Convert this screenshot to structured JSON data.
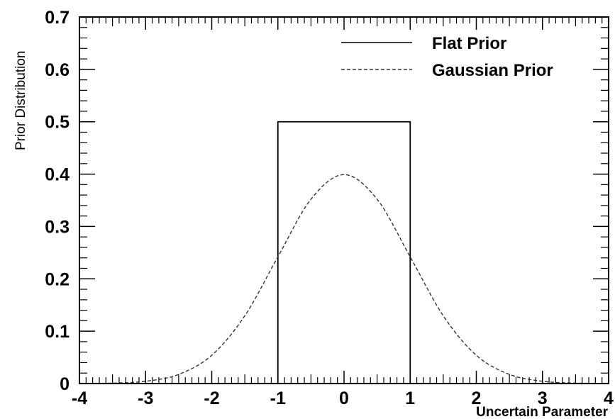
{
  "chart_data": {
    "type": "line",
    "title": "",
    "xlabel": "Uncertain Parameter",
    "ylabel": "Prior Distribution",
    "xlim": [
      -4,
      4
    ],
    "ylim": [
      0,
      0.7
    ],
    "xticks": [
      "-4",
      "-3",
      "-2",
      "-1",
      "0",
      "1",
      "2",
      "3",
      "4"
    ],
    "yticks": [
      "0",
      "0.1",
      "0.2",
      "0.3",
      "0.4",
      "0.5",
      "0.6",
      "0.7"
    ],
    "grid": false,
    "legend_position": "top-right",
    "series": [
      {
        "name": "Flat Prior",
        "style": "solid",
        "color": "#000000",
        "x": [
          -4,
          -1,
          -1,
          1,
          1,
          4
        ],
        "y": [
          0,
          0,
          0.5,
          0.5,
          0,
          0
        ]
      },
      {
        "name": "Gaussian Prior",
        "style": "dashed",
        "color": "#333333",
        "x": [
          -4,
          -3.5,
          -3,
          -2.5,
          -2,
          -1.5,
          -1,
          -0.5,
          0,
          0.5,
          1,
          1.5,
          2,
          2.5,
          3,
          3.5,
          4
        ],
        "y": [
          0.0001,
          0.0009,
          0.0044,
          0.0175,
          0.054,
          0.1295,
          0.242,
          0.352,
          0.399,
          0.352,
          0.242,
          0.1295,
          0.054,
          0.0175,
          0.0044,
          0.0009,
          0.0001
        ]
      }
    ]
  }
}
